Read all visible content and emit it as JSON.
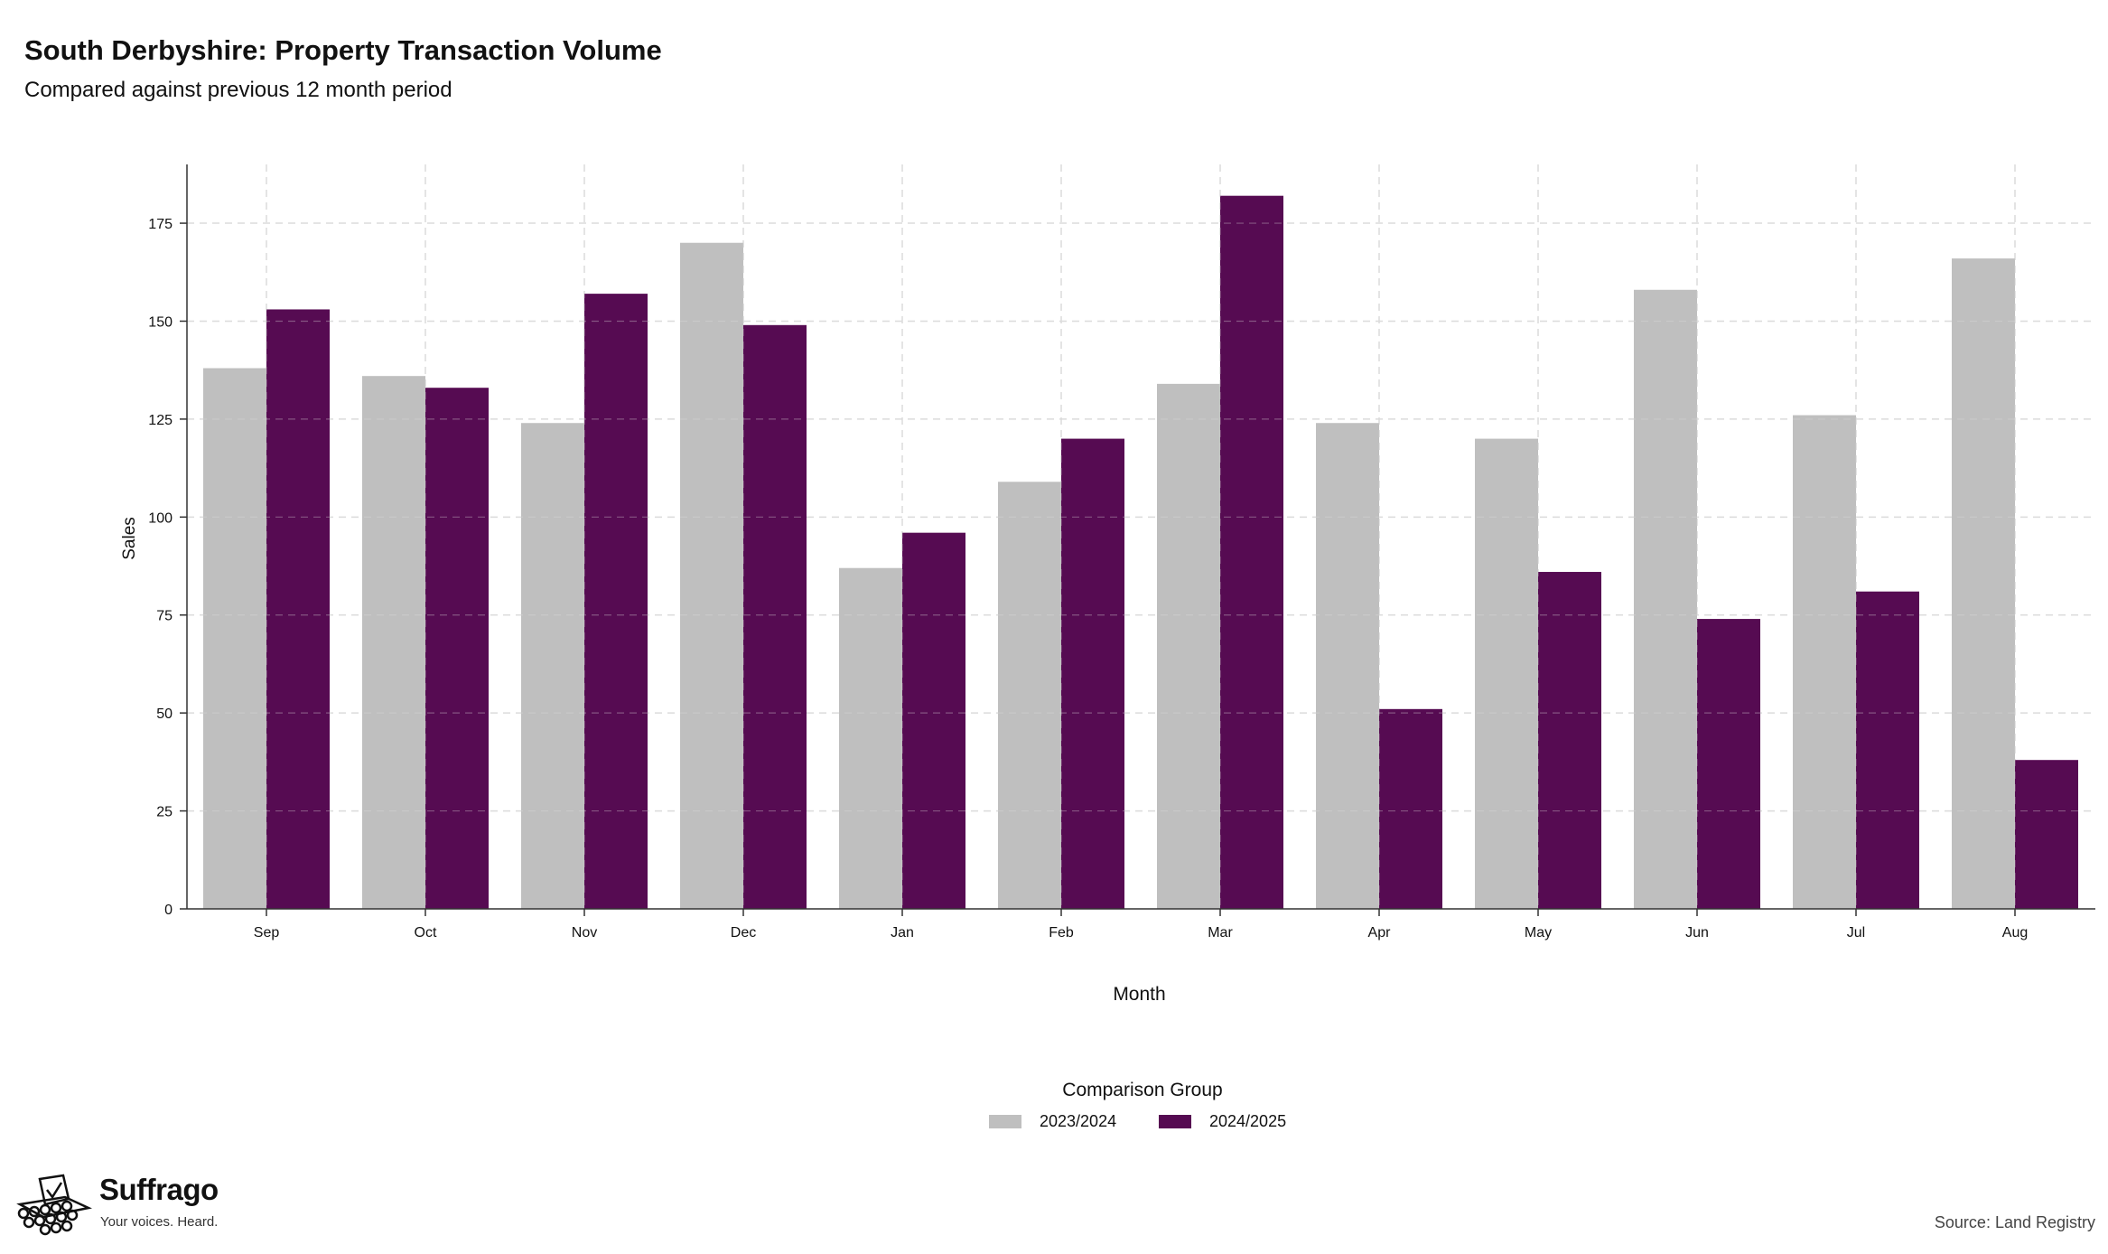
{
  "title": "South Derbyshire: Property Transaction Volume",
  "subtitle": "Compared against previous 12 month period",
  "source": "Source: Land Registry",
  "brand": {
    "name": "Suffrago",
    "tagline": "Your voices. Heard."
  },
  "legend": {
    "title": "Comparison Group",
    "position": "bottom-center"
  },
  "colors": {
    "prev": "#bfbfbf",
    "curr": "#560b52",
    "grid": "#dcdcdc",
    "axis": "#333333"
  },
  "chart_data": {
    "type": "bar",
    "xlabel": "Month",
    "ylabel": "Sales",
    "ylim": [
      0,
      190
    ],
    "yticks": [
      0,
      25,
      50,
      75,
      100,
      125,
      150,
      175
    ],
    "grid": true,
    "categories": [
      "Sep",
      "Oct",
      "Nov",
      "Dec",
      "Jan",
      "Feb",
      "Mar",
      "Apr",
      "May",
      "Jun",
      "Jul",
      "Aug"
    ],
    "series": [
      {
        "name": "2023/2024",
        "values": [
          138,
          136,
          124,
          170,
          87,
          109,
          134,
          124,
          120,
          158,
          126,
          166
        ]
      },
      {
        "name": "2024/2025",
        "values": [
          153,
          133,
          157,
          149,
          96,
          120,
          182,
          51,
          86,
          74,
          81,
          38
        ]
      }
    ]
  }
}
